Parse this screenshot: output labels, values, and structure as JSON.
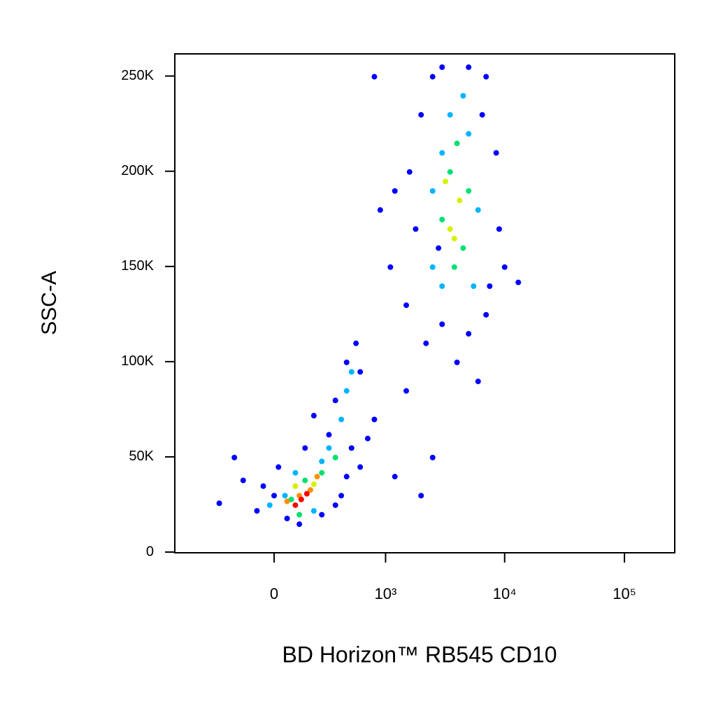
{
  "chart_data": {
    "type": "scatter",
    "xlabel": "BD Horizon™ RB545 CD10",
    "ylabel": "SSC-A",
    "xscale": "biexponential",
    "xlim": [
      -785,
      263000
    ],
    "ylim": [
      0,
      262000
    ],
    "xticks": [
      0,
      {
        "value": 1000,
        "label": "10³"
      },
      {
        "value": 10000,
        "label": "10⁴"
      },
      {
        "value": 100000,
        "label": "10⁵"
      }
    ],
    "yticks": [
      {
        "value": 0,
        "label": "0"
      },
      {
        "value": 50000,
        "label": "50K"
      },
      {
        "value": 100000,
        "label": "100K"
      },
      {
        "value": 150000,
        "label": "150K"
      },
      {
        "value": 200000,
        "label": "200K"
      },
      {
        "value": 250000,
        "label": "250K"
      }
    ],
    "series": [
      {
        "color": "#0000ff",
        "x": [
          -300,
          -150,
          -80,
          0,
          20,
          -200,
          60,
          120,
          250,
          350,
          450,
          500,
          300,
          150,
          -50,
          400,
          600,
          200,
          350,
          450,
          600,
          700,
          550,
          800,
          1200,
          2500,
          2000,
          1500,
          1500,
          1800,
          1600,
          2000,
          2500,
          3000,
          5000,
          7000,
          8500,
          9000,
          10000,
          7000,
          5000,
          3000,
          2200,
          1200,
          800,
          900,
          1100,
          13000,
          6000,
          4000,
          2800,
          7500,
          6500
        ],
        "y": [
          26000,
          38000,
          22000,
          30000,
          45000,
          50000,
          18000,
          15000,
          20000,
          25000,
          40000,
          55000,
          62000,
          55000,
          35000,
          30000,
          45000,
          72000,
          80000,
          100000,
          95000,
          60000,
          110000,
          70000,
          40000,
          50000,
          30000,
          85000,
          130000,
          170000,
          200000,
          230000,
          250000,
          255000,
          255000,
          250000,
          210000,
          170000,
          150000,
          125000,
          115000,
          120000,
          110000,
          190000,
          250000,
          180000,
          150000,
          142000,
          90000,
          100000,
          160000,
          140000,
          230000
        ]
      },
      {
        "color": "#00b4ff",
        "x": [
          50,
          100,
          250,
          300,
          400,
          450,
          500,
          -20,
          200,
          2500,
          3000,
          3500,
          5000,
          6000,
          5500,
          3000,
          2500,
          4500
        ],
        "y": [
          30000,
          42000,
          48000,
          55000,
          70000,
          85000,
          95000,
          25000,
          22000,
          150000,
          210000,
          230000,
          220000,
          180000,
          140000,
          140000,
          190000,
          240000
        ]
      },
      {
        "color": "#00e070",
        "x": [
          80,
          150,
          250,
          120,
          350,
          3500,
          4000,
          3000,
          4500,
          3800,
          5000
        ],
        "y": [
          28000,
          38000,
          42000,
          20000,
          50000,
          200000,
          215000,
          175000,
          160000,
          150000,
          190000
        ]
      },
      {
        "color": "#d8f000",
        "x": [
          100,
          200,
          3500,
          4200,
          3800,
          3200
        ],
        "y": [
          35000,
          36000,
          170000,
          185000,
          165000,
          195000
        ]
      },
      {
        "color": "#ff9000",
        "x": [
          120,
          180,
          60,
          220
        ],
        "y": [
          30000,
          33000,
          27000,
          40000
        ]
      },
      {
        "color": "#ff0000",
        "x": [
          130,
          160,
          100
        ],
        "y": [
          28000,
          31000,
          25000
        ]
      }
    ]
  }
}
